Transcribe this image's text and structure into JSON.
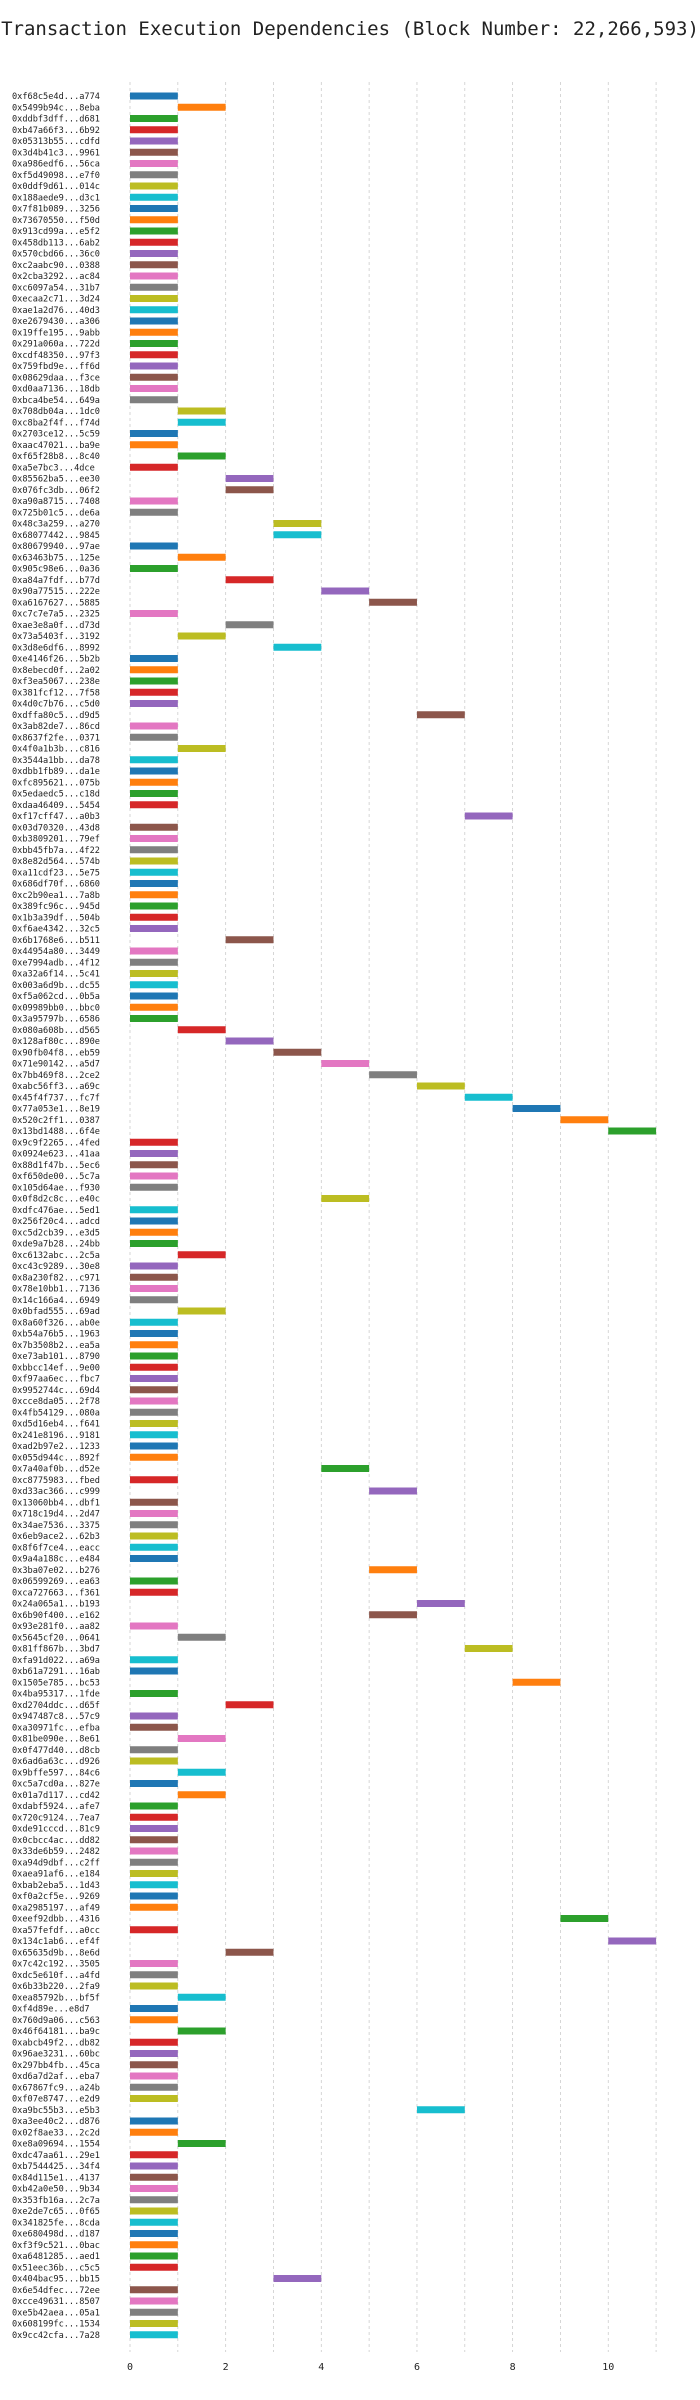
{
  "chart_data": {
    "type": "bar",
    "orientation": "horizontal",
    "title": "Transaction Execution Dependencies (Block Number: 22,266,593)",
    "xlabel": "",
    "ylabel": "",
    "xlim": [
      0,
      11.5
    ],
    "xticks": [
      0,
      2,
      4,
      6,
      8,
      10
    ],
    "grid": true,
    "legend": "none",
    "palette": [
      "#1f77b4",
      "#ff7f0e",
      "#2ca02c",
      "#d62728",
      "#9467bd",
      "#8c564b",
      "#e377c2",
      "#7f7f7f",
      "#bcbd22",
      "#17becf"
    ],
    "transactions": [
      {
        "tx": "0xf68c5e4d...a774",
        "start": 0
      },
      {
        "tx": "0x5499b94c...8eba",
        "start": 1
      },
      {
        "tx": "0xddbf3dff...d681",
        "start": 0
      },
      {
        "tx": "0xb47a66f3...6b92",
        "start": 0
      },
      {
        "tx": "0x05313b55...cdfd",
        "start": 0
      },
      {
        "tx": "0x3d4b41c3...9961",
        "start": 0
      },
      {
        "tx": "0xa986edf6...56ca",
        "start": 0
      },
      {
        "tx": "0xf5d49098...e7f0",
        "start": 0
      },
      {
        "tx": "0x0ddf9d61...014c",
        "start": 0
      },
      {
        "tx": "0x188aede9...d3c1",
        "start": 0
      },
      {
        "tx": "0x7f81b089...3256",
        "start": 0
      },
      {
        "tx": "0x73670550...f50d",
        "start": 0
      },
      {
        "tx": "0x913cd99a...e5f2",
        "start": 0
      },
      {
        "tx": "0x458db113...6ab2",
        "start": 0
      },
      {
        "tx": "0x570cbd66...36c0",
        "start": 0
      },
      {
        "tx": "0xc2aabc90...0388",
        "start": 0
      },
      {
        "tx": "0x2cba3292...ac84",
        "start": 0
      },
      {
        "tx": "0xc6097a54...31b7",
        "start": 0
      },
      {
        "tx": "0xecaa2c71...3d24",
        "start": 0
      },
      {
        "tx": "0xae1a2d76...40d3",
        "start": 0
      },
      {
        "tx": "0xe2679430...a306",
        "start": 0
      },
      {
        "tx": "0x19ffe195...9abb",
        "start": 0
      },
      {
        "tx": "0x291a060a...722d",
        "start": 0
      },
      {
        "tx": "0xcdf48350...97f3",
        "start": 0
      },
      {
        "tx": "0x759fbd9e...ff6d",
        "start": 0
      },
      {
        "tx": "0x08629daa...f3ce",
        "start": 0
      },
      {
        "tx": "0xd0aa7136...18db",
        "start": 0
      },
      {
        "tx": "0xbca4be54...649a",
        "start": 0
      },
      {
        "tx": "0x708db04a...1dc0",
        "start": 1
      },
      {
        "tx": "0xc8ba2f4f...f74d",
        "start": 1
      },
      {
        "tx": "0x2703ce12...5c59",
        "start": 0
      },
      {
        "tx": "0xaac47021...ba9e",
        "start": 0
      },
      {
        "tx": "0xf65f28b8...8c40",
        "start": 1
      },
      {
        "tx": "0xa5e7bc3...4dce",
        "start": 0
      },
      {
        "tx": "0x85562ba5...ee30",
        "start": 2
      },
      {
        "tx": "0x076fc3db...06f2",
        "start": 2
      },
      {
        "tx": "0xa90a8715...7408",
        "start": 0
      },
      {
        "tx": "0x725b01c5...de6a",
        "start": 0
      },
      {
        "tx": "0x48c3a259...a270",
        "start": 3
      },
      {
        "tx": "0x68077442...9845",
        "start": 3
      },
      {
        "tx": "0x80679940...97ae",
        "start": 0
      },
      {
        "tx": "0x63463b75...125e",
        "start": 1
      },
      {
        "tx": "0x905c98e6...0a36",
        "start": 0
      },
      {
        "tx": "0xa84a7fdf...b77d",
        "start": 2
      },
      {
        "tx": "0x90a77515...222e",
        "start": 4
      },
      {
        "tx": "0xa6167627...5885",
        "start": 5
      },
      {
        "tx": "0xc7c7e7a5...2325",
        "start": 0
      },
      {
        "tx": "0xae3e8a0f...d73d",
        "start": 2
      },
      {
        "tx": "0x73a5403f...3192",
        "start": 1
      },
      {
        "tx": "0x3d8e6df6...8992",
        "start": 3
      },
      {
        "tx": "0xe4146f26...5b2b",
        "start": 0
      },
      {
        "tx": "0x8ebecd0f...2a02",
        "start": 0
      },
      {
        "tx": "0xf3ea5067...238e",
        "start": 0
      },
      {
        "tx": "0x381fcf12...7f58",
        "start": 0
      },
      {
        "tx": "0x4d0c7b76...c5d0",
        "start": 0
      },
      {
        "tx": "0xdffa80c5...d9d5",
        "start": 6
      },
      {
        "tx": "0x3ab82de7...86cd",
        "start": 0
      },
      {
        "tx": "0x8637f2fe...0371",
        "start": 0
      },
      {
        "tx": "0x4f0a1b3b...c816",
        "start": 1
      },
      {
        "tx": "0x3544a1bb...da78",
        "start": 0
      },
      {
        "tx": "0xdbb1fb89...da1e",
        "start": 0
      },
      {
        "tx": "0xfc895621...075b",
        "start": 0
      },
      {
        "tx": "0x5edaedc5...c18d",
        "start": 0
      },
      {
        "tx": "0xdaa46409...5454",
        "start": 0
      },
      {
        "tx": "0xf17cff47...a0b3",
        "start": 7
      },
      {
        "tx": "0x03d70320...43d8",
        "start": 0
      },
      {
        "tx": "0xb3809201...79ef",
        "start": 0
      },
      {
        "tx": "0xbb45fb7a...4f22",
        "start": 0
      },
      {
        "tx": "0x8e82d564...574b",
        "start": 0
      },
      {
        "tx": "0xa11cdf23...5e75",
        "start": 0
      },
      {
        "tx": "0x686df70f...6860",
        "start": 0
      },
      {
        "tx": "0xc2b90ea1...7a8b",
        "start": 0
      },
      {
        "tx": "0x389fc96c...945d",
        "start": 0
      },
      {
        "tx": "0x1b3a39df...504b",
        "start": 0
      },
      {
        "tx": "0xf6ae4342...32c5",
        "start": 0
      },
      {
        "tx": "0x6b1768e6...b511",
        "start": 2
      },
      {
        "tx": "0x44954a80...3449",
        "start": 0
      },
      {
        "tx": "0xe7994adb...4f12",
        "start": 0
      },
      {
        "tx": "0xa32a6f14...5c41",
        "start": 0
      },
      {
        "tx": "0x003a6d9b...dc55",
        "start": 0
      },
      {
        "tx": "0xf5a062cd...0b5a",
        "start": 0
      },
      {
        "tx": "0x09989bb0...bbc0",
        "start": 0
      },
      {
        "tx": "0x3a95797b...6586",
        "start": 0
      },
      {
        "tx": "0x080a608b...d565",
        "start": 1
      },
      {
        "tx": "0x128af80c...890e",
        "start": 2
      },
      {
        "tx": "0x90fb04f8...eb59",
        "start": 3
      },
      {
        "tx": "0x71e90142...a5d7",
        "start": 4
      },
      {
        "tx": "0x7bb469f8...2ce2",
        "start": 5
      },
      {
        "tx": "0xabc56ff3...a69c",
        "start": 6
      },
      {
        "tx": "0x45f4f737...fc7f",
        "start": 7
      },
      {
        "tx": "0x77a053e1...8e19",
        "start": 8
      },
      {
        "tx": "0x520c2ff1...0387",
        "start": 9
      },
      {
        "tx": "0x13bd1488...6f4e",
        "start": 10
      },
      {
        "tx": "0x9c9f2265...4fed",
        "start": 0
      },
      {
        "tx": "0x0924e623...41aa",
        "start": 0
      },
      {
        "tx": "0x88d1f47b...5ec6",
        "start": 0
      },
      {
        "tx": "0xf650de00...5c7a",
        "start": 0
      },
      {
        "tx": "0x105d64ae...f930",
        "start": 0
      },
      {
        "tx": "0x0f8d2c8c...e40c",
        "start": 4
      },
      {
        "tx": "0xdfc476ae...5ed1",
        "start": 0
      },
      {
        "tx": "0x256f20c4...adcd",
        "start": 0
      },
      {
        "tx": "0xc5d2cb39...e3d5",
        "start": 0
      },
      {
        "tx": "0xde9a7b28...24bb",
        "start": 0
      },
      {
        "tx": "0xc6132abc...2c5a",
        "start": 1
      },
      {
        "tx": "0xc43c9289...30e8",
        "start": 0
      },
      {
        "tx": "0x8a230f82...c971",
        "start": 0
      },
      {
        "tx": "0x78e10bb1...7136",
        "start": 0
      },
      {
        "tx": "0x14c166a4...6949",
        "start": 0
      },
      {
        "tx": "0x0bfad555...69ad",
        "start": 1
      },
      {
        "tx": "0x8a60f326...ab0e",
        "start": 0
      },
      {
        "tx": "0xb54a76b5...1963",
        "start": 0
      },
      {
        "tx": "0x7b3508b2...ea5a",
        "start": 0
      },
      {
        "tx": "0xe73ab101...8790",
        "start": 0
      },
      {
        "tx": "0xbbcc14ef...9e00",
        "start": 0
      },
      {
        "tx": "0xf97aa6ec...fbc7",
        "start": 0
      },
      {
        "tx": "0x9952744c...69d4",
        "start": 0
      },
      {
        "tx": "0xcce8da05...2f78",
        "start": 0
      },
      {
        "tx": "0x4fb54129...080a",
        "start": 0
      },
      {
        "tx": "0xd5d16eb4...f641",
        "start": 0
      },
      {
        "tx": "0x241e8196...9181",
        "start": 0
      },
      {
        "tx": "0xad2b97e2...1233",
        "start": 0
      },
      {
        "tx": "0x055d944c...892f",
        "start": 0
      },
      {
        "tx": "0x7a40af0b...d52e",
        "start": 4
      },
      {
        "tx": "0xc8775983...fbed",
        "start": 0
      },
      {
        "tx": "0xd33ac366...c999",
        "start": 5
      },
      {
        "tx": "0x13060bb4...dbf1",
        "start": 0
      },
      {
        "tx": "0x718c19d4...2d47",
        "start": 0
      },
      {
        "tx": "0x34ae7536...3375",
        "start": 0
      },
      {
        "tx": "0x6eb9ace2...62b3",
        "start": 0
      },
      {
        "tx": "0x8f6f7ce4...eacc",
        "start": 0
      },
      {
        "tx": "0x9a4a188c...e484",
        "start": 0
      },
      {
        "tx": "0x3ba07e02...b276",
        "start": 5
      },
      {
        "tx": "0x06599269...ea63",
        "start": 0
      },
      {
        "tx": "0xca727663...f361",
        "start": 0
      },
      {
        "tx": "0x24a065a1...b193",
        "start": 6
      },
      {
        "tx": "0x6b90f400...e162",
        "start": 5
      },
      {
        "tx": "0x93e281f0...aa82",
        "start": 0
      },
      {
        "tx": "0x5645cf20...0641",
        "start": 1
      },
      {
        "tx": "0x81ff867b...3bd7",
        "start": 7
      },
      {
        "tx": "0xfa91d022...a69a",
        "start": 0
      },
      {
        "tx": "0xb61a7291...16ab",
        "start": 0
      },
      {
        "tx": "0x1505e785...bc53",
        "start": 8
      },
      {
        "tx": "0x4ba95317...1fde",
        "start": 0
      },
      {
        "tx": "0xd2704ddc...d65f",
        "start": 2
      },
      {
        "tx": "0x947487c8...57c9",
        "start": 0
      },
      {
        "tx": "0xa30971fc...efba",
        "start": 0
      },
      {
        "tx": "0x81be090e...8e61",
        "start": 1
      },
      {
        "tx": "0x0f477d40...d8cb",
        "start": 0
      },
      {
        "tx": "0x6ad6a63c...d926",
        "start": 0
      },
      {
        "tx": "0x9bffe597...84c6",
        "start": 1
      },
      {
        "tx": "0xc5a7cd0a...827e",
        "start": 0
      },
      {
        "tx": "0x01a7d117...cd42",
        "start": 1
      },
      {
        "tx": "0xdabf5924...afe7",
        "start": 0
      },
      {
        "tx": "0x720c9124...7ea7",
        "start": 0
      },
      {
        "tx": "0xde91cccd...81c9",
        "start": 0
      },
      {
        "tx": "0x0cbcc4ac...dd82",
        "start": 0
      },
      {
        "tx": "0x33de6b59...2482",
        "start": 0
      },
      {
        "tx": "0xa94d9dbf...c2ff",
        "start": 0
      },
      {
        "tx": "0xaea91af6...e184",
        "start": 0
      },
      {
        "tx": "0xbab2eba5...1d43",
        "start": 0
      },
      {
        "tx": "0xf0a2cf5e...9269",
        "start": 0
      },
      {
        "tx": "0xa2985197...af49",
        "start": 0
      },
      {
        "tx": "0xeef92dbb...4316",
        "start": 9
      },
      {
        "tx": "0xa57fefdf...a0cc",
        "start": 0
      },
      {
        "tx": "0x134c1ab6...ef4f",
        "start": 10
      },
      {
        "tx": "0x65635d9b...8e6d",
        "start": 2
      },
      {
        "tx": "0x7c42c192...3505",
        "start": 0
      },
      {
        "tx": "0xdc5e610f...a4fd",
        "start": 0
      },
      {
        "tx": "0x6b33b220...2fa9",
        "start": 0
      },
      {
        "tx": "0xea85792b...bf5f",
        "start": 1
      },
      {
        "tx": "0xf4d89e...e8d7",
        "start": 0
      },
      {
        "tx": "0x760d9a06...c563",
        "start": 0
      },
      {
        "tx": "0x46f64181...ba9c",
        "start": 1
      },
      {
        "tx": "0xabcb49f2...db82",
        "start": 0
      },
      {
        "tx": "0x96ae3231...60bc",
        "start": 0
      },
      {
        "tx": "0x297bb4fb...45ca",
        "start": 0
      },
      {
        "tx": "0xd6a7d2af...eba7",
        "start": 0
      },
      {
        "tx": "0x67867fc9...a24b",
        "start": 0
      },
      {
        "tx": "0xf07e8747...e2d9",
        "start": 0
      },
      {
        "tx": "0xa9bc55b3...e5b3",
        "start": 6
      },
      {
        "tx": "0xa3ee40c2...d876",
        "start": 0
      },
      {
        "tx": "0x02f8ae33...2c2d",
        "start": 0
      },
      {
        "tx": "0xe8a09694...1554",
        "start": 1
      },
      {
        "tx": "0xdc47aa61...29e1",
        "start": 0
      },
      {
        "tx": "0xb7544425...34f4",
        "start": 0
      },
      {
        "tx": "0x84d115e1...4137",
        "start": 0
      },
      {
        "tx": "0xb42a0e50...9b34",
        "start": 0
      },
      {
        "tx": "0x353fb16a...2c7a",
        "start": 0
      },
      {
        "tx": "0xe2de7c65...0f65",
        "start": 0
      },
      {
        "tx": "0x341825fe...8cda",
        "start": 0
      },
      {
        "tx": "0xe680498d...d187",
        "start": 0
      },
      {
        "tx": "0xf3f9c521...0bac",
        "start": 0
      },
      {
        "tx": "0xa6481285...aed1",
        "start": 0
      },
      {
        "tx": "0x51eec36b...c5c5",
        "start": 0
      },
      {
        "tx": "0x404bac95...bb15",
        "start": 3
      },
      {
        "tx": "0x6e54dfec...72ee",
        "start": 0
      },
      {
        "tx": "0xcce49631...8507",
        "start": 0
      },
      {
        "tx": "0xe5b42aea...05a1",
        "start": 0
      },
      {
        "tx": "0x608199fc...1534",
        "start": 0
      },
      {
        "tx": "0x9cc42cfa...7a28",
        "start": 0
      }
    ]
  }
}
